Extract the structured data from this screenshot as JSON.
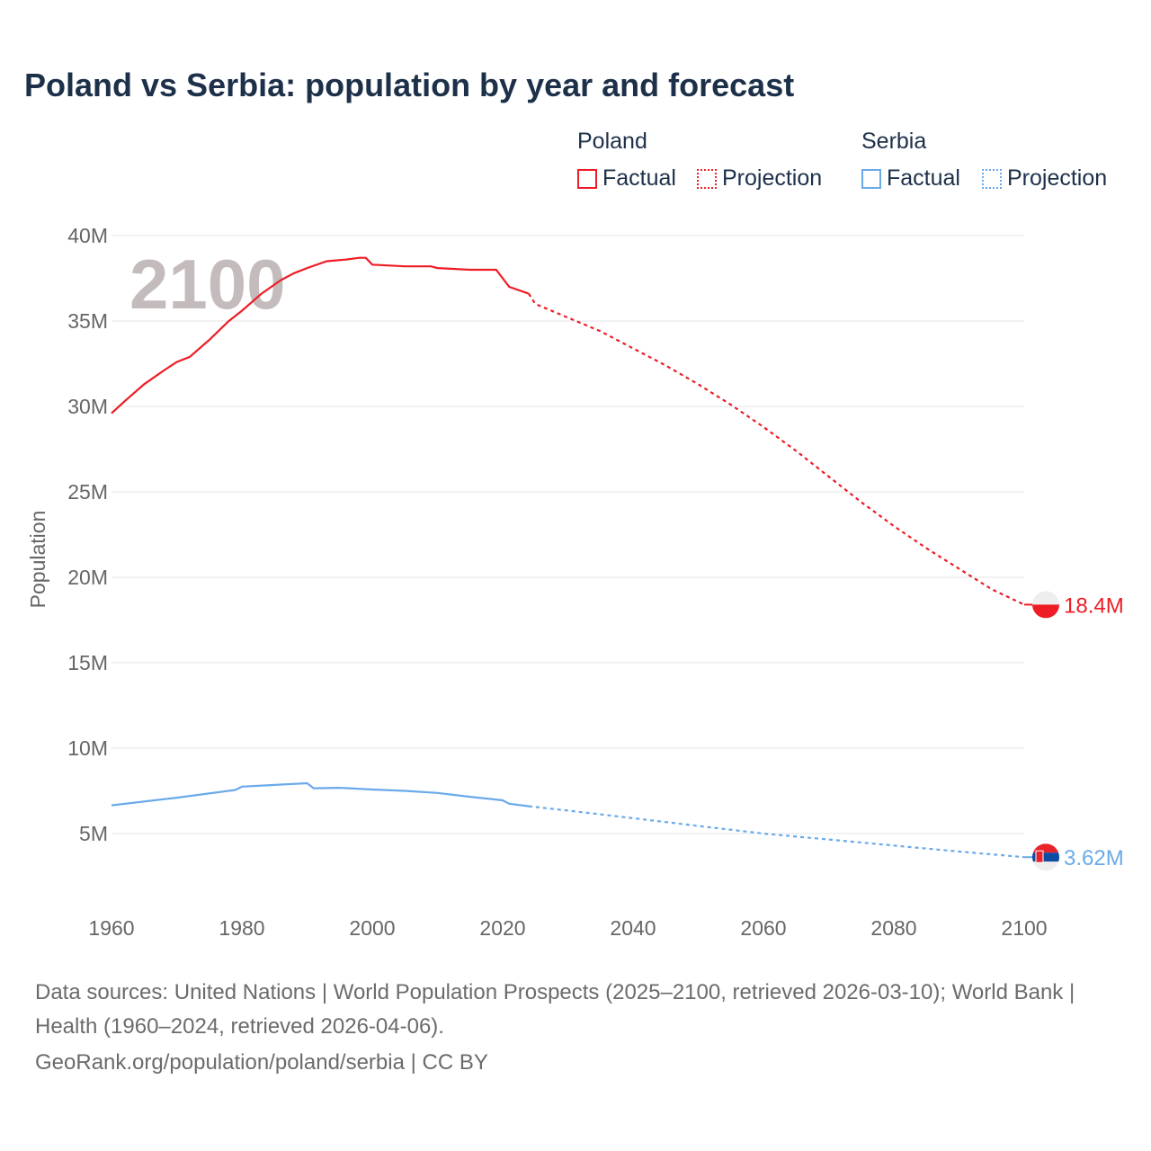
{
  "title": "Poland vs Serbia: population by year and forecast",
  "legend": {
    "groups": [
      {
        "name": "Poland",
        "color": "#ee1c25",
        "factual": "Factual",
        "projection": "Projection"
      },
      {
        "name": "Serbia",
        "color": "#6aaaea",
        "factual": "Factual",
        "projection": "Projection"
      }
    ]
  },
  "footer": {
    "sources": "Data sources: United Nations | World Population Prospects (2025–2100, retrieved 2026-03-10); World Bank | Health (1960–2024, retrieved 2026-04-06).",
    "credit": "GeoRank.org/population/poland/serbia | CC BY"
  },
  "chart_data": {
    "type": "line",
    "title": "Poland vs Serbia: population by year and forecast",
    "xlabel": "",
    "ylabel": "Population",
    "xlim": [
      1960,
      2100
    ],
    "ylim": [
      0,
      40
    ],
    "y_unit": "M",
    "xticks": [
      "1960",
      "1980",
      "2000",
      "2020",
      "2040",
      "2060",
      "2080",
      "2100"
    ],
    "yticks": [
      "5M",
      "10M",
      "15M",
      "20M",
      "25M",
      "30M",
      "35M",
      "40M"
    ],
    "year_watermark": "2100",
    "grid": true,
    "series": [
      {
        "name": "Poland",
        "color": "#ee1c25",
        "end_label": "18.4M",
        "factual": [
          [
            1960,
            29.6
          ],
          [
            1962,
            30.3
          ],
          [
            1965,
            31.3
          ],
          [
            1968,
            32.1
          ],
          [
            1970,
            32.6
          ],
          [
            1972,
            32.9
          ],
          [
            1975,
            33.9
          ],
          [
            1978,
            35.0
          ],
          [
            1980,
            35.6
          ],
          [
            1983,
            36.6
          ],
          [
            1986,
            37.4
          ],
          [
            1988,
            37.8
          ],
          [
            1990,
            38.1
          ],
          [
            1993,
            38.5
          ],
          [
            1996,
            38.6
          ],
          [
            1998,
            38.7
          ],
          [
            1999,
            38.7
          ],
          [
            2000,
            38.3
          ],
          [
            2005,
            38.2
          ],
          [
            2009,
            38.2
          ],
          [
            2010,
            38.1
          ],
          [
            2015,
            38.0
          ],
          [
            2019,
            38.0
          ],
          [
            2021,
            37.0
          ],
          [
            2024,
            36.6
          ]
        ],
        "projection": [
          [
            2024,
            36.6
          ],
          [
            2025,
            36.0
          ],
          [
            2030,
            35.2
          ],
          [
            2035,
            34.4
          ],
          [
            2040,
            33.4
          ],
          [
            2045,
            32.4
          ],
          [
            2050,
            31.3
          ],
          [
            2055,
            30.1
          ],
          [
            2060,
            28.8
          ],
          [
            2065,
            27.4
          ],
          [
            2070,
            25.9
          ],
          [
            2075,
            24.4
          ],
          [
            2080,
            23.0
          ],
          [
            2085,
            21.7
          ],
          [
            2090,
            20.5
          ],
          [
            2095,
            19.3
          ],
          [
            2100,
            18.4
          ]
        ]
      },
      {
        "name": "Serbia",
        "color": "#6aaaea",
        "end_label": "3.62M",
        "factual": [
          [
            1960,
            6.65
          ],
          [
            1970,
            7.1
          ],
          [
            1979,
            7.55
          ],
          [
            1980,
            7.75
          ],
          [
            1985,
            7.85
          ],
          [
            1990,
            7.95
          ],
          [
            1991,
            7.65
          ],
          [
            1995,
            7.68
          ],
          [
            2000,
            7.58
          ],
          [
            2005,
            7.5
          ],
          [
            2010,
            7.38
          ],
          [
            2015,
            7.15
          ],
          [
            2020,
            6.95
          ],
          [
            2021,
            6.75
          ],
          [
            2024,
            6.6
          ]
        ],
        "projection": [
          [
            2024,
            6.6
          ],
          [
            2030,
            6.35
          ],
          [
            2040,
            5.9
          ],
          [
            2050,
            5.45
          ],
          [
            2060,
            5.0
          ],
          [
            2070,
            4.65
          ],
          [
            2080,
            4.3
          ],
          [
            2090,
            3.95
          ],
          [
            2100,
            3.62
          ]
        ]
      }
    ]
  }
}
